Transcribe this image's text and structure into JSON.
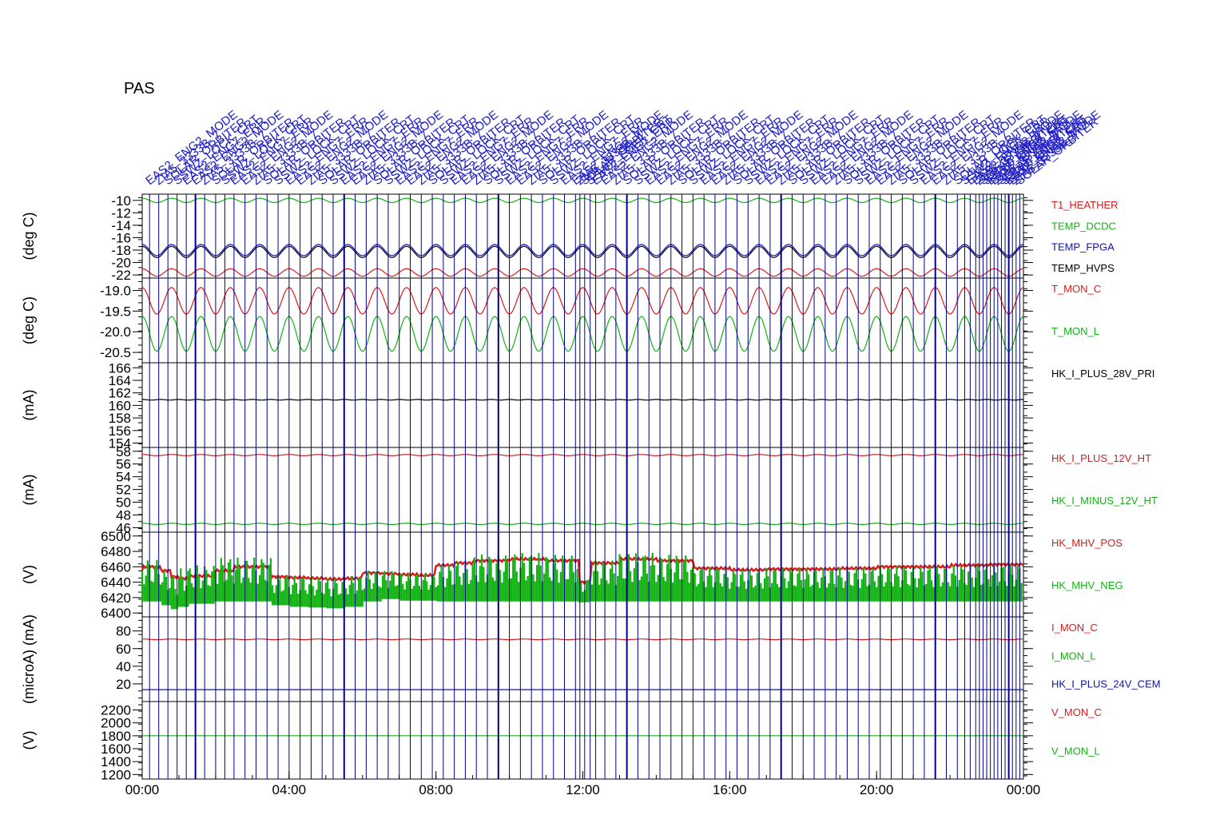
{
  "title": "PAS",
  "colors": {
    "red": "#d81c1c",
    "green": "#12b312",
    "blue": "#1010b0",
    "black": "#000000",
    "event_line": "#00008b",
    "event_text": "#2020c8"
  },
  "event_label_samples": [
    "EAS2_ENG2_MODE",
    "ZIA5_3333B_7",
    "SOLAR_ORBITER",
    "SSWZ_LOCK_CRT",
    "EAS2_ENG7_ERR"
  ],
  "chart_data": {
    "x_ticks": [
      "00:00",
      "04:00",
      "08:00",
      "12:00",
      "16:00",
      "20:00",
      "00:00"
    ],
    "x_range_hours": [
      0,
      24
    ],
    "grid": "vertical event lines",
    "event_times_hours": [
      0.2,
      0.45,
      0.7,
      0.95,
      1.2,
      1.45,
      1.7,
      2.0,
      2.25,
      2.5,
      2.8,
      3.1,
      3.4,
      3.7,
      4.0,
      4.3,
      4.6,
      4.9,
      5.2,
      5.5,
      5.8,
      6.1,
      6.4,
      6.7,
      7.0,
      7.3,
      7.6,
      7.9,
      8.2,
      8.5,
      8.8,
      9.1,
      9.4,
      9.7,
      10.0,
      10.3,
      10.6,
      10.9,
      11.2,
      11.5,
      11.8,
      11.92,
      12.05,
      12.2,
      12.35,
      12.6,
      12.9,
      13.2,
      13.5,
      13.8,
      14.1,
      14.4,
      14.7,
      15.0,
      15.3,
      15.6,
      15.9,
      16.2,
      16.5,
      16.8,
      17.1,
      17.4,
      17.7,
      18.0,
      18.3,
      18.6,
      18.9,
      19.2,
      19.5,
      19.8,
      20.1,
      20.4,
      20.7,
      21.0,
      21.3,
      21.6,
      21.9,
      22.2,
      22.4,
      22.55,
      22.7,
      22.8,
      22.9,
      23.0,
      23.1,
      23.2,
      23.3,
      23.4,
      23.5,
      23.6,
      23.7,
      23.8,
      23.9
    ],
    "panels": [
      {
        "type": "line",
        "ylabel": "(deg C)",
        "ylim": [
          -22.5,
          -9
        ],
        "yticks": [
          "-10",
          "-12",
          "-14",
          "-16",
          "-18",
          "-20",
          "-22"
        ],
        "yticks_values": [
          -10,
          -12,
          -14,
          -16,
          -18,
          -20,
          -22
        ],
        "series": [
          {
            "name": "T1_HEATHER",
            "color": "#d81c1c",
            "base": -21.6,
            "amp": 0.6,
            "period_h": 0.8
          },
          {
            "name": "TEMP_DCDC",
            "color": "#12b312",
            "base": -10.0,
            "amp": 0.35,
            "period_h": 0.8
          },
          {
            "name": "TEMP_FPGA",
            "color": "#1010b0",
            "base": -18.0,
            "amp": 0.9,
            "period_h": 0.8
          },
          {
            "name": "TEMP_HVPS",
            "color": "#000000",
            "base": -18.3,
            "amp": 0.9,
            "period_h": 0.8
          }
        ]
      },
      {
        "type": "line",
        "ylabel": "(deg C)",
        "ylim": [
          -20.75,
          -18.7
        ],
        "yticks": [
          "-19.0",
          "-19.5",
          "-20.0",
          "-20.5"
        ],
        "yticks_values": [
          -19.0,
          -19.5,
          -20.0,
          -20.5
        ],
        "series": [
          {
            "name": "T_MON_C",
            "color": "#d81c1c",
            "base": -19.25,
            "amp": 0.32,
            "period_h": 0.8
          },
          {
            "name": "T_MON_L",
            "color": "#12b312",
            "base": -20.05,
            "amp": 0.42,
            "period_h": 0.8
          }
        ]
      },
      {
        "type": "line",
        "ylabel": "(mA)",
        "ylim": [
          153.3,
          166.8
        ],
        "yticks": [
          "166",
          "164",
          "162",
          "160",
          "158",
          "156",
          "154"
        ],
        "yticks_values": [
          166,
          164,
          162,
          160,
          158,
          156,
          154
        ],
        "series": [
          {
            "name": "HK_I_PLUS_28V_PRI",
            "color": "#000000",
            "base": 160.9,
            "amp": 0.05,
            "period_h": 0.5
          }
        ]
      },
      {
        "type": "line",
        "ylabel": "(mA)",
        "ylim": [
          45.3,
          58.6
        ],
        "yticks": [
          "58",
          "56",
          "54",
          "52",
          "50",
          "48",
          "46"
        ],
        "yticks_values": [
          58,
          56,
          54,
          52,
          50,
          48,
          46
        ],
        "series": [
          {
            "name": "HK_I_PLUS_12V_HT",
            "color": "#d81c1c",
            "base": 57.4,
            "amp": 0.1,
            "period_h": 0.8
          },
          {
            "name": "HK_I_MINUS_12V_HT",
            "color": "#12b312",
            "base": 46.6,
            "amp": 0.1,
            "period_h": 0.8
          }
        ]
      },
      {
        "type": "area",
        "ylabel": "(V)",
        "ylim": [
          6395,
          6505
        ],
        "yticks": [
          "6500",
          "6480",
          "6460",
          "6440",
          "6420",
          "6400"
        ],
        "yticks_values": [
          6500,
          6480,
          6460,
          6440,
          6420,
          6400
        ],
        "series": [
          {
            "name": "HK_MHV_POS",
            "color": "#d81c1c",
            "x": [
              0,
              0.5,
              0.8,
              1.0,
              1.3,
              2.0,
              2.5,
              3.5,
              4.0,
              4.5,
              5.0,
              5.5,
              6.0,
              6.5,
              7.0,
              7.5,
              8.0,
              8.5,
              9.0,
              10.0,
              11.0,
              11.9,
              12.2,
              13.0,
              14.0,
              15.0,
              16.0,
              17.0,
              18.0,
              19.0,
              20.0,
              21.0,
              22.0,
              23.0,
              24.0
            ],
            "values": [
              6455,
              6460,
              6455,
              6447,
              6445,
              6448,
              6455,
              6460,
              6447,
              6446,
              6445,
              6444,
              6445,
              6452,
              6451,
              6450,
              6449,
              6462,
              6465,
              6468,
              6470,
              6468,
              6440,
              6465,
              6470,
              6468,
              6458,
              6456,
              6457,
              6457,
              6458,
              6460,
              6460,
              6462,
              6463
            ]
          },
          {
            "name": "HK_MHV_NEG",
            "color": "#12b312",
            "x": [
              0,
              0.5,
              0.8,
              1.0,
              1.3,
              2.0,
              2.5,
              3.5,
              4.0,
              4.5,
              5.0,
              5.5,
              6.0,
              6.5,
              7.0,
              7.5,
              8.0,
              8.5,
              9.0,
              10.0,
              11.0,
              11.9,
              12.2,
              13.0,
              14.0,
              15.0,
              16.0,
              17.0,
              18.0,
              19.0,
              20.0,
              21.0,
              22.0,
              23.0,
              24.0
            ],
            "values": [
              6415,
              6415,
              6410,
              6405,
              6408,
              6412,
              6415,
              6415,
              6410,
              6408,
              6407,
              6406,
              6408,
              6415,
              6418,
              6416,
              6416,
              6415,
              6415,
              6415,
              6415,
              6415,
              6414,
              6415,
              6415,
              6415,
              6415,
              6415,
              6415,
              6415,
              6415,
              6415,
              6415,
              6415,
              6415
            ],
            "top_values": [
              6470,
              6470,
              6455,
              6450,
              6458,
              6462,
              6472,
              6472,
              6450,
              6448,
              6446,
              6445,
              6448,
              6455,
              6455,
              6452,
              6451,
              6462,
              6468,
              6476,
              6478,
              6476,
              6445,
              6468,
              6478,
              6476,
              6460,
              6456,
              6458,
              6458,
              6459,
              6461,
              6461,
              6462,
              6463
            ]
          }
        ]
      },
      {
        "type": "line",
        "ylabel": "(microA) (mA)",
        "ylim": [
          0,
          96
        ],
        "yticks": [
          "80",
          "60",
          "40",
          "20"
        ],
        "yticks_values": [
          80,
          60,
          40,
          20
        ],
        "series": [
          {
            "name": "I_MON_C",
            "color": "#d81c1c",
            "base": 70.5,
            "amp": 0.4,
            "period_h": 0.8
          },
          {
            "name": "I_MON_L",
            "color": "#12b312",
            "base": null,
            "amp": 0,
            "period_h": 1
          },
          {
            "name": "HK_I_PLUS_24V_CEM",
            "color": "#1010b0",
            "base": 13.5,
            "amp": 0,
            "period_h": 1
          }
        ]
      },
      {
        "type": "line",
        "ylabel": "(V)",
        "ylim": [
          1130,
          2330
        ],
        "yticks": [
          "2200",
          "2000",
          "1800",
          "1600",
          "1400",
          "1200"
        ],
        "yticks_values": [
          2200,
          2000,
          1800,
          1600,
          1400,
          1200
        ],
        "series": [
          {
            "name": "V_MON_C",
            "color": "#d81c1c",
            "base": null,
            "amp": 0,
            "period_h": 1
          },
          {
            "name": "V_MON_L",
            "color": "#12b312",
            "base": 1800,
            "amp": 0,
            "period_h": 1
          }
        ]
      }
    ]
  }
}
